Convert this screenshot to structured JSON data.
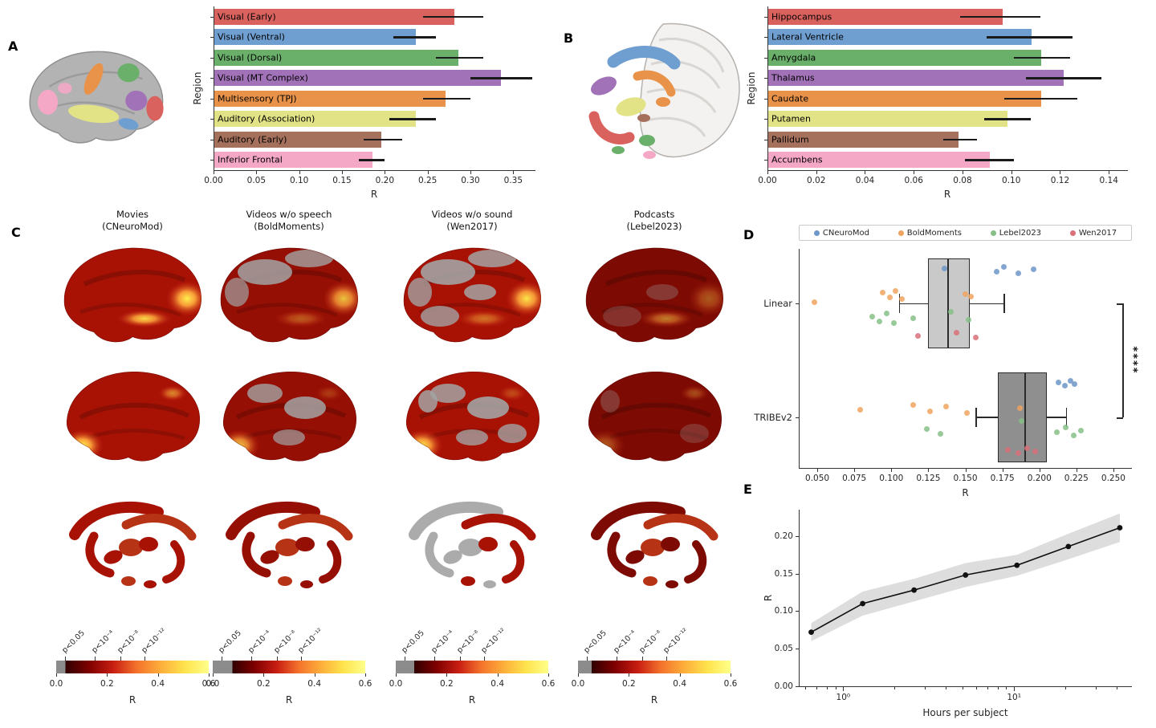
{
  "figure": {
    "background": "#ffffff"
  },
  "panel_labels": {
    "A": "A",
    "B": "B",
    "C": "C",
    "D": "D",
    "E": "E"
  },
  "colors": {
    "roi_palette": [
      "#d9625e",
      "#6f9ed0",
      "#6ab06a",
      "#a272b8",
      "#e89349",
      "#e2e287",
      "#a5715c",
      "#f4a8c6"
    ],
    "error_bar": "#1a1a1a",
    "axis": "#262626",
    "hotspot_yellow": "#ffe34d",
    "surface_red": "#a81205",
    "surface_gray": "#a8a8a8"
  },
  "chart_data": [
    {
      "id": "cortical_roi_bars",
      "panel": "A",
      "type": "bar",
      "orientation": "horizontal",
      "xlabel": "R",
      "ylabel": "Region",
      "xlim": [
        0,
        0.375
      ],
      "xticks": [
        0,
        0.05,
        0.1,
        0.15,
        0.2,
        0.25,
        0.3,
        0.35
      ],
      "categories": [
        "Visual (Early)",
        "Visual (Ventral)",
        "Visual (Dorsal)",
        "Visual (MT Complex)",
        "Multisensory (TPJ)",
        "Auditory (Association)",
        "Auditory (Early)",
        "Inferior Frontal"
      ],
      "values": [
        0.28,
        0.235,
        0.285,
        0.335,
        0.27,
        0.235,
        0.195,
        0.185
      ],
      "err_lo": [
        0.245,
        0.21,
        0.26,
        0.3,
        0.245,
        0.205,
        0.175,
        0.17
      ],
      "err_hi": [
        0.315,
        0.26,
        0.315,
        0.372,
        0.3,
        0.26,
        0.22,
        0.2
      ],
      "bar_colors": [
        "#d9625e",
        "#6f9ed0",
        "#6ab06a",
        "#a272b8",
        "#e89349",
        "#e2e287",
        "#a5715c",
        "#f4a8c6"
      ]
    },
    {
      "id": "subcortical_roi_bars",
      "panel": "B",
      "type": "bar",
      "orientation": "horizontal",
      "xlabel": "R",
      "ylabel": "Region",
      "xlim": [
        0,
        0.1475
      ],
      "xticks": [
        0,
        0.02,
        0.04,
        0.06,
        0.08,
        0.1,
        0.12,
        0.14
      ],
      "categories": [
        "Hippocampus",
        "Lateral Ventricle",
        "Amygdala",
        "Thalamus",
        "Caudate",
        "Putamen",
        "Pallidum",
        "Accumbens"
      ],
      "values": [
        0.096,
        0.108,
        0.112,
        0.121,
        0.112,
        0.098,
        0.078,
        0.091
      ],
      "err_lo": [
        0.079,
        0.09,
        0.101,
        0.106,
        0.097,
        0.089,
        0.072,
        0.081
      ],
      "err_hi": [
        0.112,
        0.125,
        0.124,
        0.137,
        0.127,
        0.108,
        0.086,
        0.101
      ],
      "bar_colors": [
        "#d9625e",
        "#6f9ed0",
        "#6ab06a",
        "#a272b8",
        "#e89349",
        "#e2e287",
        "#a5715c",
        "#f4a8c6"
      ]
    },
    {
      "id": "model_comparison",
      "panel": "D",
      "type": "box-strip",
      "xlabel": "R",
      "xlim": [
        0.0375,
        0.2625
      ],
      "xticks": [
        0.05,
        0.075,
        0.1,
        0.125,
        0.15,
        0.175,
        0.2,
        0.225,
        0.25
      ],
      "groups": [
        "Linear",
        "TRIBEv2"
      ],
      "significance": "****",
      "legend": [
        {
          "label": "CNeuroMod",
          "color": "#6d96c9"
        },
        {
          "label": "BoldMoments",
          "color": "#f0a35e"
        },
        {
          "label": "Lebel2023",
          "color": "#86c086"
        },
        {
          "label": "Wen2017",
          "color": "#d9707a"
        }
      ],
      "boxes": [
        {
          "group": "Linear",
          "whisker_lo": 0.105,
          "q1": 0.125,
          "median": 0.138,
          "q3": 0.153,
          "whisker_hi": 0.176,
          "fill": "#c9c9c9"
        },
        {
          "group": "TRIBEv2",
          "whisker_lo": 0.157,
          "q1": 0.172,
          "median": 0.19,
          "q3": 0.205,
          "whisker_hi": 0.218,
          "fill": "#8f8f8f"
        }
      ],
      "points": [
        {
          "group": "Linear",
          "dataset": "CNeuroMod",
          "x": [
            0.136,
            0.171,
            0.176,
            0.186,
            0.196
          ],
          "dy": [
            -44,
            -40,
            -46,
            -38,
            -43
          ]
        },
        {
          "group": "Linear",
          "dataset": "BoldMoments",
          "x": [
            0.048,
            0.094,
            0.099,
            0.103,
            0.107,
            0.15,
            0.154
          ],
          "dy": [
            -2,
            -14,
            -8,
            -16,
            -6,
            -12,
            -9
          ]
        },
        {
          "group": "Linear",
          "dataset": "Lebel2023",
          "x": [
            0.087,
            0.092,
            0.097,
            0.102,
            0.115,
            0.14,
            0.152
          ],
          "dy": [
            16,
            22,
            12,
            24,
            18,
            10,
            20
          ]
        },
        {
          "group": "Linear",
          "dataset": "Wen2017",
          "x": [
            0.118,
            0.144,
            0.157
          ],
          "dy": [
            40,
            36,
            42
          ]
        },
        {
          "group": "TRIBEv2",
          "dataset": "CNeuroMod",
          "x": [
            0.213,
            0.217,
            0.221,
            0.224
          ],
          "dy": [
            -44,
            -40,
            -46,
            -42
          ]
        },
        {
          "group": "TRIBEv2",
          "dataset": "BoldMoments",
          "x": [
            0.079,
            0.115,
            0.126,
            0.137,
            0.151,
            0.187
          ],
          "dy": [
            -10,
            -16,
            -8,
            -14,
            -6,
            -12
          ]
        },
        {
          "group": "TRIBEv2",
          "dataset": "Lebel2023",
          "x": [
            0.124,
            0.133,
            0.188,
            0.212,
            0.218,
            0.223,
            0.228
          ],
          "dy": [
            14,
            20,
            4,
            18,
            12,
            22,
            16
          ]
        },
        {
          "group": "TRIBEv2",
          "dataset": "Wen2017",
          "x": [
            0.179,
            0.186,
            0.192,
            0.197
          ],
          "dy": [
            40,
            44,
            38,
            42
          ]
        }
      ]
    },
    {
      "id": "hours_scaling",
      "panel": "E",
      "type": "line",
      "xlabel": "Hours per subject",
      "ylabel": "R",
      "xscale": "log",
      "xlog_lim": [
        -0.26,
        1.69
      ],
      "ylim": [
        0,
        0.235
      ],
      "yticks": [
        0,
        0.05,
        0.1,
        0.15,
        0.2
      ],
      "xtick_values": [
        1,
        10
      ],
      "xtick_labels": [
        "10⁰",
        "10¹"
      ],
      "minor_ticks": [
        0.6,
        0.7,
        0.8,
        0.9,
        2,
        3,
        4,
        5,
        6,
        7,
        8,
        9,
        20,
        30,
        40
      ],
      "x": [
        0.65,
        1.3,
        2.6,
        5.2,
        10.4,
        20.8,
        41.6
      ],
      "y": [
        0.072,
        0.11,
        0.128,
        0.148,
        0.161,
        0.186,
        0.211
      ],
      "band_lo": [
        0.06,
        0.094,
        0.113,
        0.132,
        0.147,
        0.169,
        0.192
      ],
      "band_hi": [
        0.084,
        0.126,
        0.143,
        0.164,
        0.175,
        0.203,
        0.23
      ],
      "line_color": "#111111",
      "band_color": "#bbbbbb"
    }
  ],
  "panel_c": {
    "columns": [
      {
        "title": "Movies",
        "subtitle": "(CNeuroMod)",
        "under_pct": 6
      },
      {
        "title": "Videos w/o speech",
        "subtitle": "(BoldMoments)",
        "under_pct": 13
      },
      {
        "title": "Videos w/o sound",
        "subtitle": "(Wen2017)",
        "under_pct": 12
      },
      {
        "title": "Podcasts",
        "subtitle": "(Lebel2023)",
        "under_pct": 9
      }
    ],
    "colorbar": {
      "label": "R",
      "ticks": [
        "0.0",
        "0.2",
        "0.4",
        "0.6"
      ],
      "p_labels": [
        "p<0.05",
        "p<10⁻⁴",
        "p<10⁻⁸",
        "p<10⁻¹²"
      ],
      "under_color": "#8c8c8c",
      "gradient": [
        "#300000",
        "#7f0000",
        "#c81e12",
        "#f4732c",
        "#fdae3b",
        "#ffe34d",
        "#ffff8a"
      ]
    }
  }
}
